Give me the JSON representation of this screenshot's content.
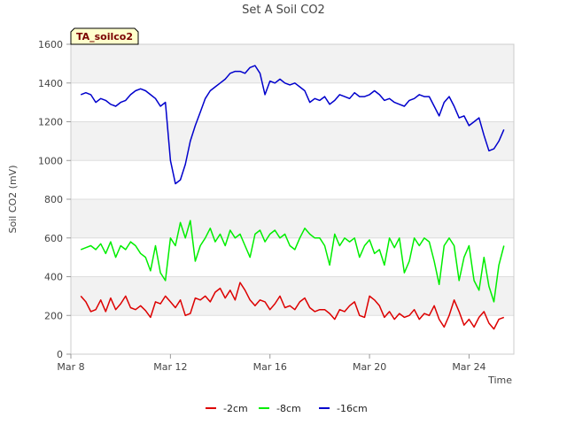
{
  "chart_data": {
    "type": "line",
    "title": "Set A Soil CO2",
    "xlabel": "Time",
    "ylabel": "Soil CO2 (mV)",
    "tag": "TA_soilco2",
    "xlim": [
      8.0,
      25.8
    ],
    "ylim": [
      0,
      1600
    ],
    "x_ticks": [
      {
        "value": 8,
        "label": "Mar 8"
      },
      {
        "value": 12,
        "label": "Mar 12"
      },
      {
        "value": 16,
        "label": "Mar 16"
      },
      {
        "value": 20,
        "label": "Mar 20"
      },
      {
        "value": 24,
        "label": "Mar 24"
      }
    ],
    "y_ticks": [
      0,
      200,
      400,
      600,
      800,
      1000,
      1200,
      1400,
      1600
    ],
    "legend_position": "bottom-center",
    "series": [
      {
        "name": "-2cm",
        "color": "#dd0000",
        "x": [
          8.4,
          8.6,
          8.8,
          9.0,
          9.2,
          9.4,
          9.6,
          9.8,
          10.0,
          10.2,
          10.4,
          10.6,
          10.8,
          11.0,
          11.2,
          11.4,
          11.6,
          11.8,
          12.0,
          12.2,
          12.4,
          12.6,
          12.8,
          13.0,
          13.2,
          13.4,
          13.6,
          13.8,
          14.0,
          14.2,
          14.4,
          14.6,
          14.8,
          15.0,
          15.2,
          15.4,
          15.6,
          15.8,
          16.0,
          16.2,
          16.4,
          16.6,
          16.8,
          17.0,
          17.2,
          17.4,
          17.6,
          17.8,
          18.0,
          18.2,
          18.4,
          18.6,
          18.8,
          19.0,
          19.2,
          19.4,
          19.6,
          19.8,
          20.0,
          20.2,
          20.4,
          20.6,
          20.8,
          21.0,
          21.2,
          21.4,
          21.6,
          21.8,
          22.0,
          22.2,
          22.4,
          22.6,
          22.8,
          23.0,
          23.2,
          23.4,
          23.6,
          23.8,
          24.0,
          24.2,
          24.4,
          24.6,
          24.8,
          25.0,
          25.2,
          25.4
        ],
        "values": [
          300,
          270,
          220,
          230,
          280,
          220,
          290,
          230,
          260,
          300,
          240,
          230,
          250,
          225,
          190,
          270,
          260,
          300,
          270,
          240,
          280,
          200,
          210,
          290,
          280,
          300,
          270,
          320,
          340,
          290,
          330,
          280,
          370,
          330,
          280,
          250,
          280,
          270,
          230,
          260,
          300,
          240,
          250,
          230,
          270,
          290,
          240,
          220,
          230,
          230,
          210,
          180,
          230,
          220,
          250,
          270,
          200,
          190,
          300,
          280,
          250,
          190,
          220,
          180,
          210,
          190,
          200,
          230,
          180,
          210,
          200,
          250,
          180,
          140,
          200,
          280,
          220,
          150,
          180,
          140,
          190,
          220,
          160,
          130,
          180,
          190
        ]
      },
      {
        "name": "-8cm",
        "color": "#00ee00",
        "x": [
          8.4,
          8.6,
          8.8,
          9.0,
          9.2,
          9.4,
          9.6,
          9.8,
          10.0,
          10.2,
          10.4,
          10.6,
          10.8,
          11.0,
          11.2,
          11.4,
          11.6,
          11.8,
          12.0,
          12.2,
          12.4,
          12.6,
          12.8,
          13.0,
          13.2,
          13.4,
          13.6,
          13.8,
          14.0,
          14.2,
          14.4,
          14.6,
          14.8,
          15.0,
          15.2,
          15.4,
          15.6,
          15.8,
          16.0,
          16.2,
          16.4,
          16.6,
          16.8,
          17.0,
          17.2,
          17.4,
          17.6,
          17.8,
          18.0,
          18.2,
          18.4,
          18.6,
          18.8,
          19.0,
          19.2,
          19.4,
          19.6,
          19.8,
          20.0,
          20.2,
          20.4,
          20.6,
          20.8,
          21.0,
          21.2,
          21.4,
          21.6,
          21.8,
          22.0,
          22.2,
          22.4,
          22.6,
          22.8,
          23.0,
          23.2,
          23.4,
          23.6,
          23.8,
          24.0,
          24.2,
          24.4,
          24.6,
          24.8,
          25.0,
          25.2,
          25.4
        ],
        "values": [
          540,
          550,
          560,
          540,
          570,
          520,
          580,
          500,
          560,
          540,
          580,
          560,
          520,
          500,
          430,
          560,
          420,
          380,
          600,
          560,
          680,
          600,
          690,
          480,
          560,
          600,
          650,
          580,
          620,
          560,
          640,
          600,
          620,
          560,
          500,
          620,
          640,
          580,
          620,
          640,
          600,
          620,
          560,
          540,
          600,
          650,
          620,
          600,
          600,
          560,
          460,
          620,
          560,
          600,
          580,
          600,
          500,
          560,
          590,
          520,
          540,
          460,
          600,
          550,
          600,
          420,
          480,
          600,
          560,
          600,
          580,
          480,
          360,
          560,
          600,
          560,
          380,
          500,
          560,
          380,
          330,
          500,
          350,
          270,
          460,
          560
        ]
      },
      {
        "name": "-16cm",
        "color": "#0000cc",
        "x": [
          8.4,
          8.6,
          8.8,
          9.0,
          9.2,
          9.4,
          9.6,
          9.8,
          10.0,
          10.2,
          10.4,
          10.6,
          10.8,
          11.0,
          11.2,
          11.4,
          11.6,
          11.8,
          12.0,
          12.2,
          12.4,
          12.6,
          12.8,
          13.0,
          13.2,
          13.4,
          13.6,
          13.8,
          14.0,
          14.2,
          14.4,
          14.6,
          14.8,
          15.0,
          15.2,
          15.4,
          15.6,
          15.8,
          16.0,
          16.2,
          16.4,
          16.6,
          16.8,
          17.0,
          17.2,
          17.4,
          17.6,
          17.8,
          18.0,
          18.2,
          18.4,
          18.6,
          18.8,
          19.0,
          19.2,
          19.4,
          19.6,
          19.8,
          20.0,
          20.2,
          20.4,
          20.6,
          20.8,
          21.0,
          21.2,
          21.4,
          21.6,
          21.8,
          22.0,
          22.2,
          22.4,
          22.6,
          22.8,
          23.0,
          23.2,
          23.4,
          23.6,
          23.8,
          24.0,
          24.2,
          24.4,
          24.6,
          24.8,
          25.0,
          25.2,
          25.4
        ],
        "values": [
          1340,
          1350,
          1340,
          1300,
          1320,
          1310,
          1290,
          1280,
          1300,
          1310,
          1340,
          1360,
          1370,
          1360,
          1340,
          1320,
          1280,
          1300,
          1000,
          880,
          900,
          980,
          1100,
          1180,
          1250,
          1320,
          1360,
          1380,
          1400,
          1420,
          1450,
          1460,
          1460,
          1450,
          1480,
          1490,
          1450,
          1340,
          1410,
          1400,
          1420,
          1400,
          1390,
          1400,
          1380,
          1360,
          1300,
          1320,
          1310,
          1330,
          1290,
          1310,
          1340,
          1330,
          1320,
          1350,
          1330,
          1330,
          1340,
          1360,
          1340,
          1310,
          1320,
          1300,
          1290,
          1280,
          1310,
          1320,
          1340,
          1330,
          1330,
          1280,
          1230,
          1300,
          1330,
          1280,
          1220,
          1230,
          1180,
          1200,
          1220,
          1130,
          1050,
          1060,
          1100,
          1160
        ]
      }
    ]
  }
}
